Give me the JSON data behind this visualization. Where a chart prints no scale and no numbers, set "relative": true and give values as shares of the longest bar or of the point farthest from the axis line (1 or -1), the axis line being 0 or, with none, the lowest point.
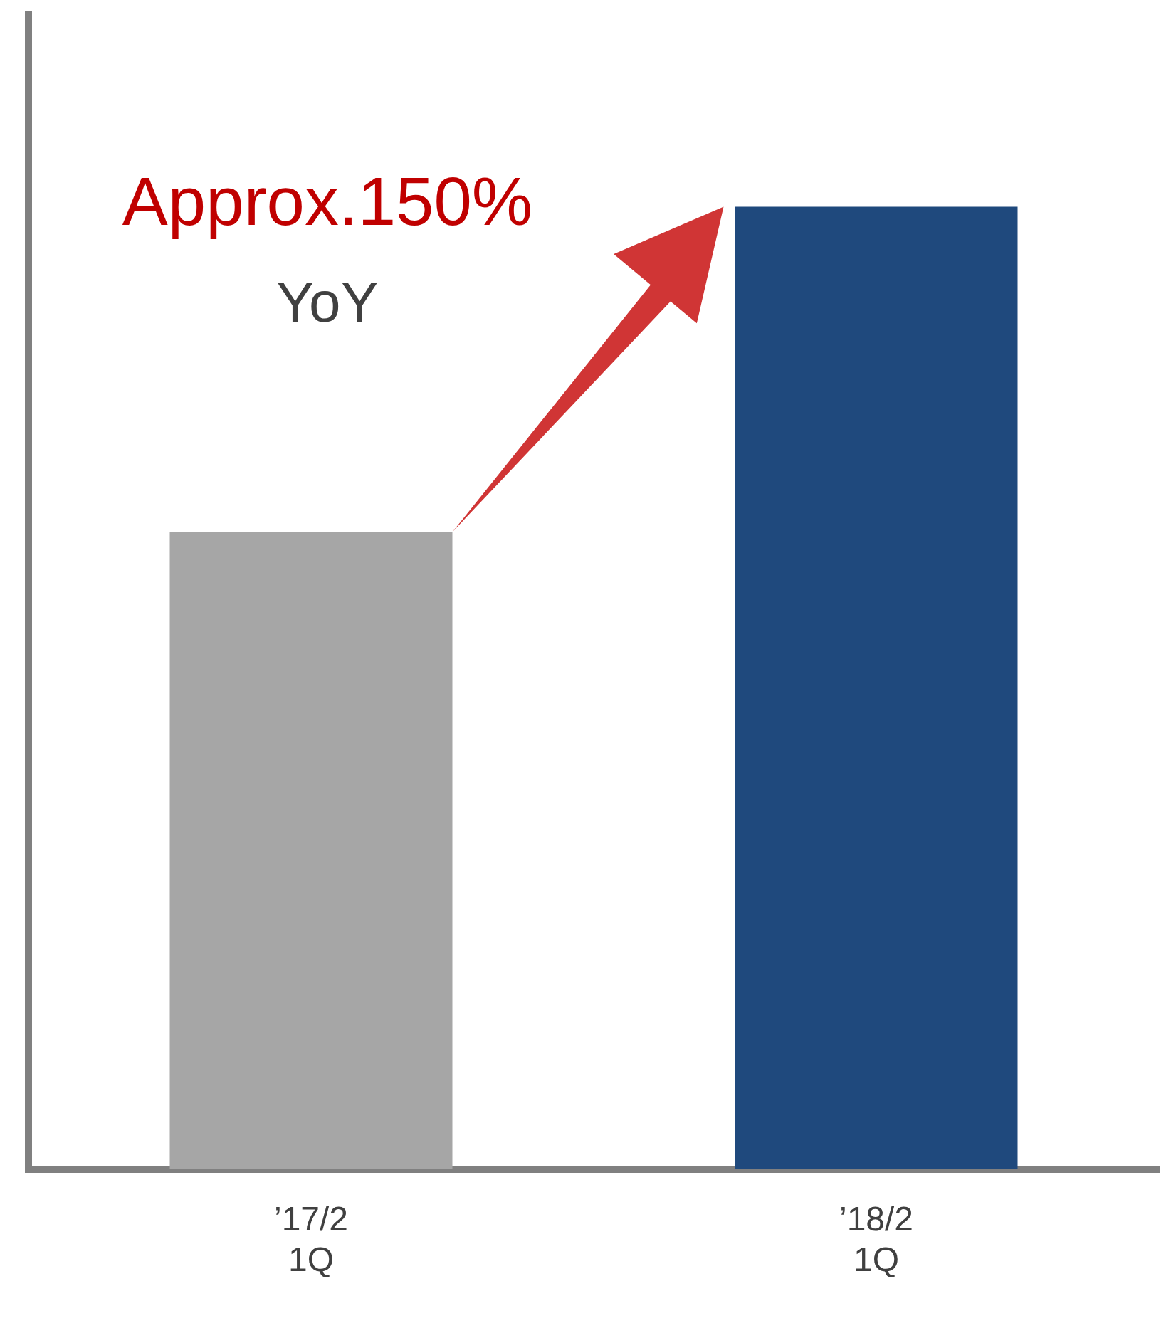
{
  "chart_data": {
    "type": "bar",
    "categories": [
      "’17/2\n1Q",
      "’18/2\n1Q"
    ],
    "relative": true,
    "colors": [
      "#a6a6a6",
      "#1f497d"
    ],
    "values": [
      0.662,
      1
    ],
    "annotations": [
      "Approx.150%",
      "YoY"
    ],
    "grid": false,
    "legend": false
  }
}
